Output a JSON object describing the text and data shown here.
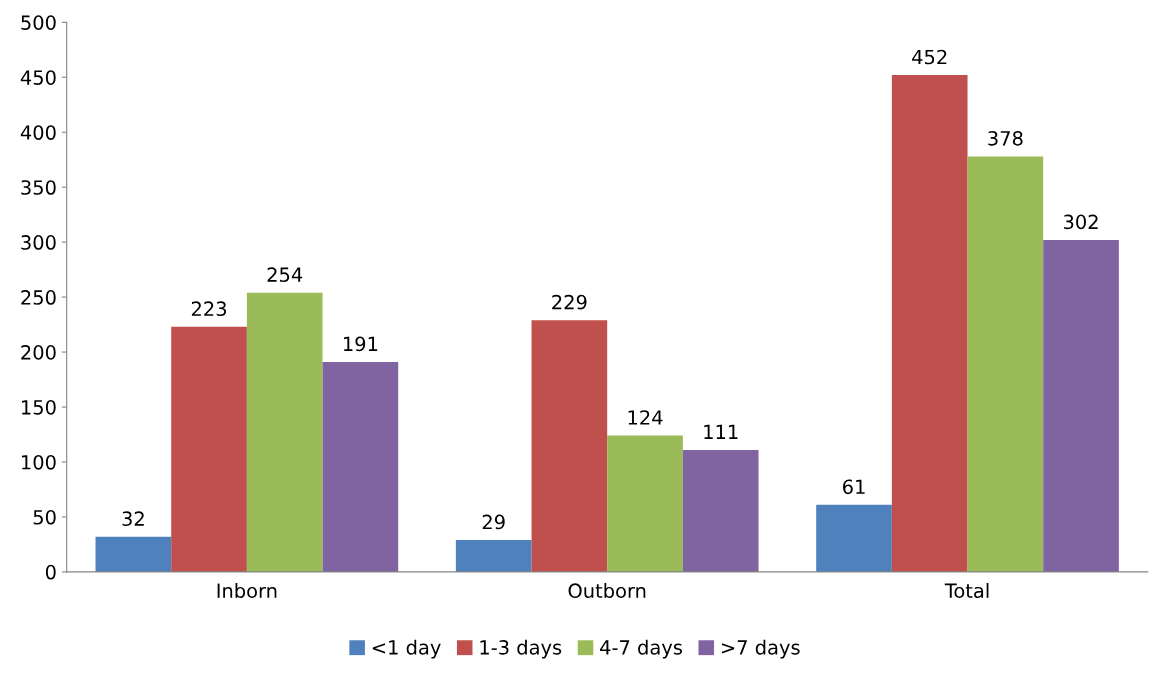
{
  "chart_data": {
    "type": "bar",
    "categories": [
      "Inborn",
      "Outborn",
      "Total"
    ],
    "series": [
      {
        "name": "<1 day",
        "color": "#4f81bd",
        "values": [
          32,
          29,
          61
        ]
      },
      {
        "name": "1-3 days",
        "color": "#c0504d",
        "values": [
          223,
          229,
          452
        ]
      },
      {
        "name": "4-7 days",
        "color": "#9bbb59",
        "values": [
          254,
          124,
          378
        ]
      },
      {
        "name": ">7 days",
        "color": "#8064a2",
        "values": [
          191,
          111,
          302
        ]
      }
    ],
    "ylim": [
      0,
      500
    ],
    "yticks": [
      0,
      50,
      100,
      150,
      200,
      250,
      300,
      350,
      400,
      450,
      500
    ],
    "data_labels": true,
    "grid": false,
    "legend": "bottom"
  }
}
